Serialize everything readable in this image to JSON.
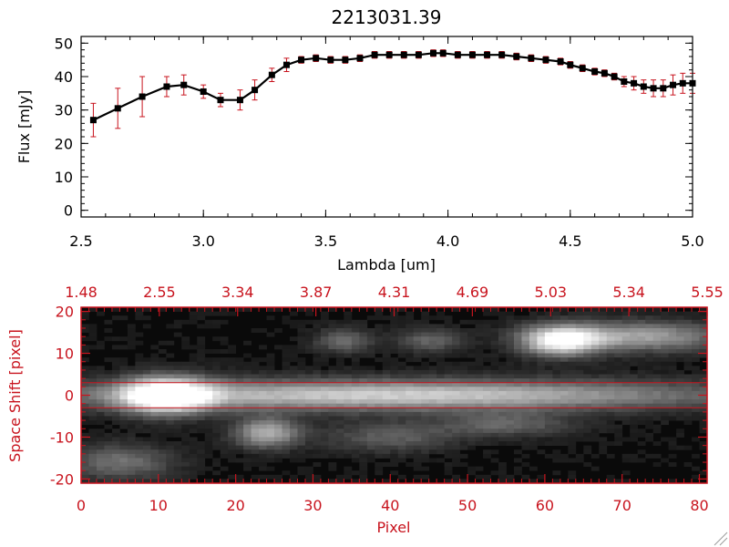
{
  "colors": {
    "axis_top": "#000000",
    "axis_bottom": "#c8141e",
    "errorbar": "#c8141e",
    "marker": "#000000",
    "line": "#000000",
    "image_bg": "#0a0a0a"
  },
  "chart_data": [
    {
      "type": "line",
      "title": "2213031.39",
      "xlabel": "Lambda [um]",
      "ylabel": "Flux [mJy]",
      "xlim": [
        2.5,
        5.0
      ],
      "ylim": [
        -2,
        52
      ],
      "xticks": [
        "2.5",
        "3.0",
        "3.5",
        "4.0",
        "4.5",
        "5.0"
      ],
      "yticks": [
        "0",
        "10",
        "20",
        "30",
        "40",
        "50"
      ],
      "series": [
        {
          "x": [
            2.55,
            2.65,
            2.75,
            2.85,
            2.92,
            3.0,
            3.07,
            3.15,
            3.21,
            3.28,
            3.34,
            3.4,
            3.46,
            3.52,
            3.58,
            3.64,
            3.7,
            3.76,
            3.82,
            3.88,
            3.94,
            3.98,
            4.04,
            4.1,
            4.16,
            4.22,
            4.28,
            4.34,
            4.4,
            4.46,
            4.5,
            4.55,
            4.6,
            4.64,
            4.68,
            4.72,
            4.76,
            4.8,
            4.84,
            4.88,
            4.92,
            4.96,
            5.0
          ],
          "y": [
            27,
            30.5,
            34,
            37,
            37.5,
            35.5,
            33,
            33,
            36,
            40.5,
            43.5,
            45,
            45.5,
            45,
            45,
            45.5,
            46.5,
            46.5,
            46.5,
            46.5,
            47,
            47,
            46.5,
            46.5,
            46.5,
            46.5,
            46,
            45.5,
            45,
            44.5,
            43.5,
            42.5,
            41.5,
            41,
            40,
            38.5,
            38,
            37,
            36.5,
            36.5,
            37.5,
            38,
            38
          ],
          "err": [
            5,
            6,
            6,
            3,
            3,
            2,
            2,
            3,
            3,
            2,
            2,
            1,
            1,
            1,
            1,
            1,
            1,
            1,
            1,
            1,
            1,
            1,
            1,
            1,
            1,
            1,
            1,
            1,
            1,
            1,
            1,
            1,
            1,
            1,
            1,
            1.5,
            2,
            2,
            2.5,
            2.5,
            3,
            3,
            3
          ]
        }
      ],
      "grid": false
    },
    {
      "type": "heatmap",
      "xlabel": "Pixel",
      "ylabel": "Space Shift [pixel]",
      "xlim": [
        0,
        81
      ],
      "ylim": [
        -21,
        21
      ],
      "xticks": [
        "0",
        "10",
        "20",
        "30",
        "40",
        "50",
        "60",
        "70",
        "80"
      ],
      "yticks": [
        "-20",
        "-10",
        "0",
        "10",
        "20"
      ],
      "top_xticks": [
        "1.48",
        "2.55",
        "3.34",
        "3.87",
        "4.31",
        "4.69",
        "5.03",
        "5.34",
        "5.55"
      ],
      "aperture_lines_y": [
        3,
        -3
      ],
      "sources": [
        {
          "x": 11,
          "y": 0,
          "peak": 1.0,
          "sx": 4,
          "sy": 3
        },
        {
          "x": 40,
          "y": 0,
          "peak": 0.72,
          "sx": 30,
          "sy": 2.6
        },
        {
          "x": 62,
          "y": 13,
          "peak": 0.85,
          "sx": 3.5,
          "sy": 2.5
        },
        {
          "x": 72,
          "y": 14,
          "peak": 0.55,
          "sx": 8,
          "sy": 2.5
        },
        {
          "x": 24,
          "y": -9,
          "peak": 0.6,
          "sx": 3,
          "sy": 2.5
        },
        {
          "x": 34,
          "y": 13,
          "peak": 0.35,
          "sx": 2.5,
          "sy": 2
        },
        {
          "x": 45,
          "y": 13,
          "peak": 0.3,
          "sx": 3,
          "sy": 2
        },
        {
          "x": 5,
          "y": -16,
          "peak": 0.35,
          "sx": 5,
          "sy": 3
        },
        {
          "x": 55,
          "y": -7,
          "peak": 0.3,
          "sx": 6,
          "sy": 2
        },
        {
          "x": 40,
          "y": -10,
          "peak": 0.28,
          "sx": 6,
          "sy": 2.5
        }
      ]
    }
  ]
}
